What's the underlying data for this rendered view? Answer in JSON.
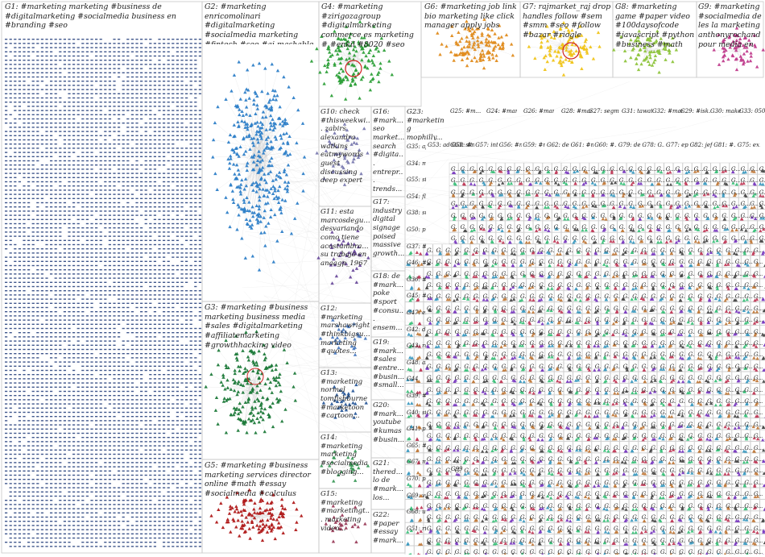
{
  "diagram": {
    "type": "clustered-network-graph",
    "palette": {
      "G1": "#1f3a78",
      "G2": "#2e7fc8",
      "G3": "#1d7a3a",
      "G4": "#2ea03a",
      "G5": "#b01a1a",
      "G6": "#e08c1e",
      "G7": "#f0c419",
      "G8": "#8ec43c",
      "G9": "#c03c8c",
      "edge": "#b8b8b8",
      "box": "#c8c8c8",
      "small": [
        "#7a3cc0",
        "#3c9ac0",
        "#c07a3c",
        "#4a4a4a",
        "#3cc07a",
        "#c03c5a"
      ]
    },
    "labels": [
      {
        "id": "G1",
        "text": "G1: #marketing marketing #business de #digitalmarketing #socialmedia business en #branding #seo"
      },
      {
        "id": "G2",
        "text": "G2: #marketing enricomolinari #digitalmarketing #socialmedia marketing #fintech #seo #ai mashable #business"
      },
      {
        "id": "G3",
        "text": "G3: #marketing #business marketing business media #sales #digitalmarketing #affiliatemarketing #growthhacking video"
      },
      {
        "id": "G4",
        "text": "G4: #marketing #zirigozagroup #digitalmarketing commerce es marketing # #enkil #8020 #seo"
      },
      {
        "id": "G5",
        "text": "G5: #marketing #business marketing services director online #math #essay #socialmedia #calculus"
      },
      {
        "id": "G6",
        "text": "G6: #marketing job link bio marketing like click manager apply jobs"
      },
      {
        "id": "G7",
        "text": "G7: rajmarket_raj drop handles follow #sem #smm #seo #follow #bazar #riogle"
      },
      {
        "id": "G8",
        "text": "G8: #marketing game #paper video #100daysofcode #javascript #python #business #math review"
      },
      {
        "id": "G9",
        "text": "G9: #marketing #socialmedia de les la marketing anthonyrochand pour media en"
      },
      {
        "id": "G10",
        "text": "G10: check #thisweekwi... zabirs alexandra watkins eatmywords guest discussing deep expert"
      },
      {
        "id": "G11",
        "text": "G11: esta marcosdegu... desvariando como tiene acostumbra... su trabajo en anaagp_1967"
      },
      {
        "id": "G12",
        "text": "G12: #marketing marshawright #thinkbigsu... marketing #quotes..."
      },
      {
        "id": "G13",
        "text": "G13: #marketing normal tomfishburne #marketoon #cartoon..."
      },
      {
        "id": "G14",
        "text": "G14: #marketing marketing #socialmedia #blogging..."
      },
      {
        "id": "G15",
        "text": "G15: #marketing #marketingt... marketing video..."
      },
      {
        "id": "G16",
        "text": "G16: #mark... seo market... search #digita... entrepr... trends..."
      },
      {
        "id": "G17",
        "text": "G17: industry digital signage poised massive growth..."
      },
      {
        "id": "G18",
        "text": "G18: de #mark... poke #sport #consu... ensem..."
      },
      {
        "id": "G19",
        "text": "G19: #mark... #sales #entre... #busin... #small..."
      },
      {
        "id": "G20",
        "text": "G20: #mark... youtube #kumas #busin..."
      },
      {
        "id": "G21",
        "text": "G21: thered... lo de #mark... los..."
      },
      {
        "id": "G22",
        "text": "G22: #paper #essay #mark..."
      },
      {
        "id": "G23",
        "text": "G23: #marketing mophilly..."
      }
    ],
    "small_labels": [
      {
        "id": "G25",
        "text": "G25: #m..."
      },
      {
        "id": "G24",
        "text": "G24: #marke..."
      },
      {
        "id": "G26",
        "text": "G26: #marke..."
      },
      {
        "id": "G28",
        "text": "G28: #mark..."
      },
      {
        "id": "G27",
        "text": "G27: segment..."
      },
      {
        "id": "G31",
        "text": "G31: tawat..."
      },
      {
        "id": "G32",
        "text": "G32: #mar..."
      },
      {
        "id": "G29",
        "text": "G29: #isk..."
      },
      {
        "id": "G30",
        "text": "G30: make..."
      },
      {
        "id": "G33",
        "text": "G33: 050 espe..."
      },
      {
        "id": "G35",
        "text": "G35: affi..."
      },
      {
        "id": "G34",
        "text": "G34: ma..."
      },
      {
        "id": "G38",
        "text": "G38: sup..."
      },
      {
        "id": "G37",
        "text": "G37: #ar..."
      },
      {
        "id": "G36",
        "text": "G36: #m..."
      },
      {
        "id": "G39",
        "text": "G39: #b..."
      },
      {
        "id": "G40",
        "text": "G40: sta..."
      },
      {
        "id": "G41",
        "text": "G41: pu..."
      },
      {
        "id": "G44",
        "text": "G44"
      },
      {
        "id": "G55",
        "text": "G55: sta..."
      },
      {
        "id": "G54",
        "text": "G54: flas..."
      },
      {
        "id": "G50",
        "text": "G50: pri..."
      },
      {
        "id": "G46",
        "text": "G46: #ce..."
      },
      {
        "id": "G45",
        "text": "G45: #se..."
      },
      {
        "id": "G47",
        "text": "G47: er..."
      },
      {
        "id": "G42",
        "text": "G42: de..."
      },
      {
        "id": "G43",
        "text": "G43: rab..."
      },
      {
        "id": "G48",
        "text": "G48: ai..."
      },
      {
        "id": "G53",
        "text": "G53: ademol..."
      },
      {
        "id": "G58",
        "text": "G58: #m..."
      },
      {
        "id": "G57",
        "text": "G57: inte..."
      },
      {
        "id": "G56",
        "text": "G56: #m..."
      },
      {
        "id": "G59",
        "text": "G59: #m..."
      },
      {
        "id": "G62",
        "text": "G62: de..."
      },
      {
        "id": "G61",
        "text": "G61: #m..."
      },
      {
        "id": "G60",
        "text": "G60: #..."
      },
      {
        "id": "G63",
        "text": "G63: site"
      },
      {
        "id": "G79",
        "text": "G79: de..."
      },
      {
        "id": "G78",
        "text": "G78: G..."
      },
      {
        "id": "G77",
        "text": "G77: ep..."
      },
      {
        "id": "G82",
        "text": "G82: jef..."
      },
      {
        "id": "G81",
        "text": "G81: #..."
      },
      {
        "id": "G75",
        "text": "G75: ex..."
      },
      {
        "id": "G65",
        "text": "G65: #..."
      },
      {
        "id": "G67",
        "text": "G67: ma..."
      },
      {
        "id": "G70",
        "text": "G70: ps..."
      },
      {
        "id": "G69",
        "text": "G69: virt..."
      },
      {
        "id": "G68",
        "text": "G68: un..."
      },
      {
        "id": "G51",
        "text": "G51: rig..."
      },
      {
        "id": "G99",
        "text": "G99"
      }
    ],
    "grid_placeholder": "G.",
    "grid_truncated": "G..."
  }
}
